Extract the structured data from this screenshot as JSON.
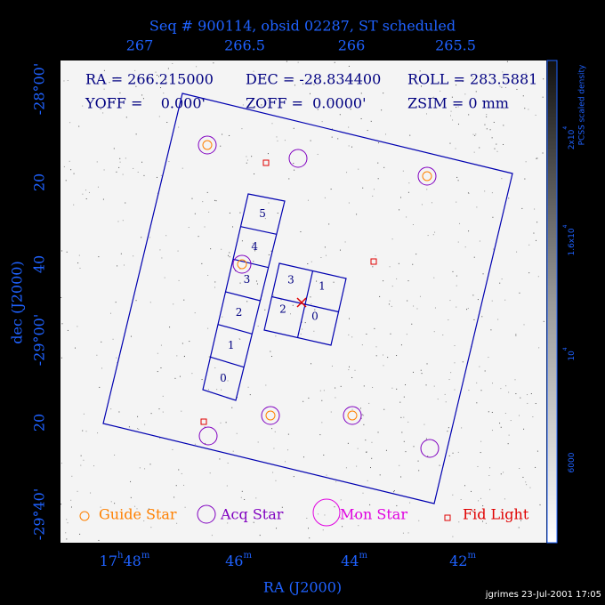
{
  "title": "Seq # 900114, obsid 02287, ST scheduled",
  "top_axis": {
    "ticks": [
      "267",
      "266.5",
      "266",
      "265.5"
    ]
  },
  "left_axis": {
    "label": "dec (J2000)",
    "ticks": [
      "-28°00'",
      "20",
      "40",
      "-29°00'",
      "20",
      "-29°40'"
    ]
  },
  "bottom_axis": {
    "label": "RA (J2000)",
    "ticks": [
      [
        "17",
        "h",
        "48",
        "m"
      ],
      [
        "46",
        "m"
      ],
      [
        "44",
        "m"
      ],
      [
        "42",
        "m"
      ]
    ]
  },
  "header": {
    "ra": "RA = 266.215000",
    "dec": "DEC = -28.834400",
    "roll": "ROLL = 283.5881",
    "yoff": "YOFF =    0.000'",
    "zoff": "ZOFF =  0.0000'",
    "zsim": "ZSIM = 0 mm"
  },
  "detectors": {
    "acis_i": [
      "0",
      "1",
      "2",
      "3"
    ],
    "acis_s": [
      "0",
      "1",
      "2",
      "3",
      "4",
      "5"
    ]
  },
  "legend": [
    "Guide Star",
    "Acq Star",
    "Mon Star",
    "Fid Light"
  ],
  "colorbar": {
    "label": "PCSS scaled density",
    "ticks": [
      [
        "2x10",
        "4"
      ],
      [
        "1.6x10",
        "4"
      ],
      [
        "10",
        "4"
      ],
      [
        "6000"
      ]
    ]
  },
  "footer": "jgrimes 23-Jul-2001 17:05"
}
